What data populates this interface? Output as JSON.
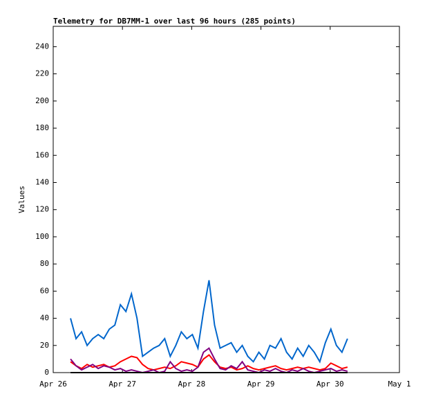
{
  "chart_data": {
    "type": "line",
    "title": "Telemetry for DB7MM-1 over last 96 hours (285 points)",
    "y_label": "Values",
    "x": [
      26.25,
      26.33,
      26.41,
      26.49,
      26.57,
      26.65,
      26.73,
      26.81,
      26.89,
      26.97,
      27.05,
      27.13,
      27.21,
      27.29,
      27.37,
      27.45,
      27.53,
      27.61,
      27.69,
      27.77,
      27.85,
      27.93,
      28.01,
      28.09,
      28.17,
      28.25,
      28.33,
      28.41,
      28.49,
      28.57,
      28.65,
      28.73,
      28.81,
      28.89,
      28.97,
      29.05,
      29.13,
      29.21,
      29.29,
      29.37,
      29.45,
      29.53,
      29.61,
      29.69,
      29.77,
      29.85,
      29.93,
      30.01,
      30.09,
      30.17,
      30.25
    ],
    "series": [
      {
        "color": "#0066cc",
        "values": [
          40,
          25,
          30,
          20,
          25,
          28,
          25,
          32,
          35,
          50,
          45,
          58,
          40,
          12,
          15,
          18,
          20,
          25,
          12,
          20,
          30,
          25,
          28,
          18,
          45,
          68,
          35,
          18,
          20,
          22,
          15,
          20,
          12,
          8,
          15,
          10,
          20,
          18,
          25,
          15,
          10,
          18,
          12,
          20,
          15,
          8,
          22,
          32,
          20,
          15,
          25
        ]
      },
      {
        "color": "#ff0000",
        "values": [
          8,
          5,
          3,
          6,
          4,
          5,
          6,
          4,
          5,
          8,
          10,
          12,
          11,
          6,
          3,
          2,
          3,
          4,
          3,
          5,
          8,
          7,
          6,
          4,
          10,
          13,
          8,
          4,
          3,
          4,
          2,
          3,
          5,
          3,
          2,
          3,
          4,
          5,
          3,
          2,
          3,
          4,
          3,
          4,
          3,
          2,
          3,
          7,
          5,
          3,
          4
        ]
      },
      {
        "color": "#800080",
        "values": [
          10,
          5,
          2,
          4,
          6,
          3,
          5,
          4,
          2,
          3,
          1,
          2,
          1,
          0,
          1,
          2,
          0,
          1,
          8,
          3,
          1,
          2,
          1,
          4,
          15,
          18,
          10,
          3,
          2,
          5,
          3,
          8,
          2,
          1,
          0,
          2,
          1,
          3,
          1,
          0,
          2,
          1,
          3,
          1,
          0,
          1,
          2,
          3,
          1,
          2,
          1
        ]
      },
      {
        "color": "#000000",
        "values": [
          0,
          0,
          0,
          0,
          0,
          0,
          0,
          0,
          0,
          0,
          0,
          0,
          0,
          0,
          0,
          0,
          0,
          0,
          0,
          0,
          0,
          0,
          0,
          0,
          0,
          0,
          0,
          0,
          0,
          0,
          0,
          0,
          0,
          0,
          0,
          0,
          0,
          0,
          0,
          0,
          0,
          0,
          0,
          0,
          0,
          0,
          0,
          0,
          0,
          0,
          0
        ]
      }
    ],
    "xlim": [
      26,
      31
    ],
    "xticks": [
      {
        "value": 26,
        "label": "Apr 26"
      },
      {
        "value": 27,
        "label": "Apr 27"
      },
      {
        "value": 28,
        "label": "Apr 28"
      },
      {
        "value": 29,
        "label": "Apr 29"
      },
      {
        "value": 30,
        "label": "Apr 30"
      },
      {
        "value": 31,
        "label": "May 1"
      }
    ],
    "ylim": [
      0,
      255
    ],
    "yticks": [
      0,
      20,
      40,
      60,
      80,
      100,
      120,
      140,
      160,
      180,
      200,
      220,
      240
    ]
  }
}
